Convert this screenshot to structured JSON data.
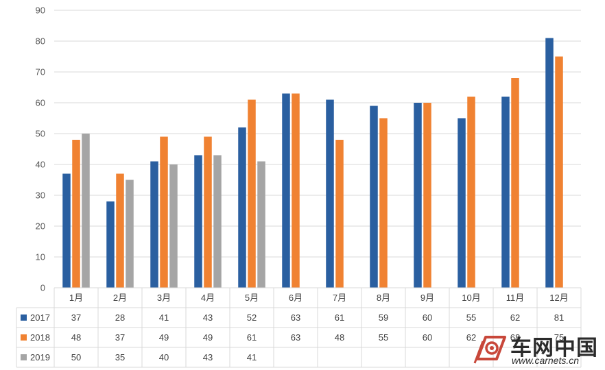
{
  "chart_data": {
    "type": "bar",
    "title": "",
    "xlabel": "",
    "ylabel": "",
    "ylim": [
      0,
      90
    ],
    "yticks": [
      0,
      10,
      20,
      30,
      40,
      50,
      60,
      70,
      80,
      90
    ],
    "grid": true,
    "legend": "data-table",
    "categories": [
      "1月",
      "2月",
      "3月",
      "4月",
      "5月",
      "6月",
      "7月",
      "8月",
      "9月",
      "10月",
      "11月",
      "12月"
    ],
    "series": [
      {
        "name": "2017",
        "color": "#2a5fa0",
        "values": [
          37,
          28,
          41,
          43,
          52,
          63,
          61,
          59,
          60,
          55,
          62,
          81
        ]
      },
      {
        "name": "2018",
        "color": "#f08232",
        "values": [
          48,
          37,
          49,
          49,
          61,
          63,
          48,
          55,
          60,
          62,
          68,
          75
        ]
      },
      {
        "name": "2019",
        "color": "#a5a5a5",
        "values": [
          50,
          35,
          40,
          43,
          41,
          null,
          null,
          null,
          null,
          null,
          null,
          null
        ]
      }
    ]
  },
  "watermark": {
    "title": "车网中国",
    "url": "www.carnets.cn",
    "logo_icon": "carnets-logo-icon"
  }
}
